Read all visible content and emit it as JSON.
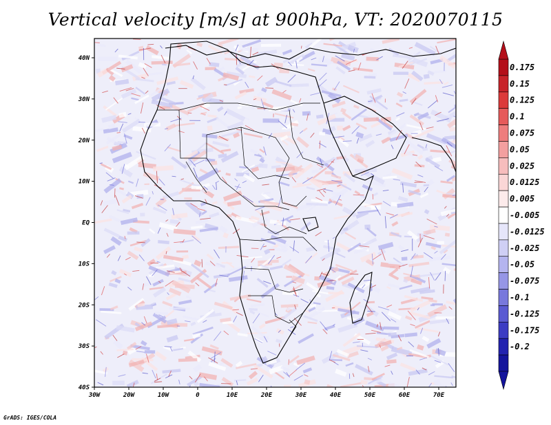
{
  "title": "Vertical velocity [m/s] at 900hPa, VT: 2020070115",
  "credit": "GrADS: IGES/COLA",
  "axes": {
    "lon_ticks": [
      "30W",
      "20W",
      "10W",
      "0",
      "10E",
      "20E",
      "30E",
      "40E",
      "50E",
      "60E",
      "70E"
    ],
    "lat_ticks": [
      "40N",
      "30N",
      "20N",
      "10N",
      "EQ",
      "10S",
      "20S",
      "30S",
      "40S"
    ]
  },
  "colorbar": {
    "labels": [
      "0.175",
      "0.15",
      "0.125",
      "0.1",
      "0.075",
      "0.05",
      "0.025",
      "0.0125",
      "0.005",
      "-0.005",
      "-0.0125",
      "-0.025",
      "-0.05",
      "-0.075",
      "-0.1",
      "-0.125",
      "-0.175",
      "-0.2"
    ],
    "colors": [
      "#b40f1a",
      "#c8232a",
      "#dc3a3a",
      "#e65a5a",
      "#ee7d7d",
      "#f39f9f",
      "#f7bdbd",
      "#fad6d6",
      "#fdebeb",
      "#ffffff",
      "#e6e6fa",
      "#cfcff5",
      "#b4b4ef",
      "#9696e6",
      "#7878dc",
      "#5a5ad2",
      "#3c3cc3",
      "#2222b0",
      "#14149c"
    ]
  }
}
